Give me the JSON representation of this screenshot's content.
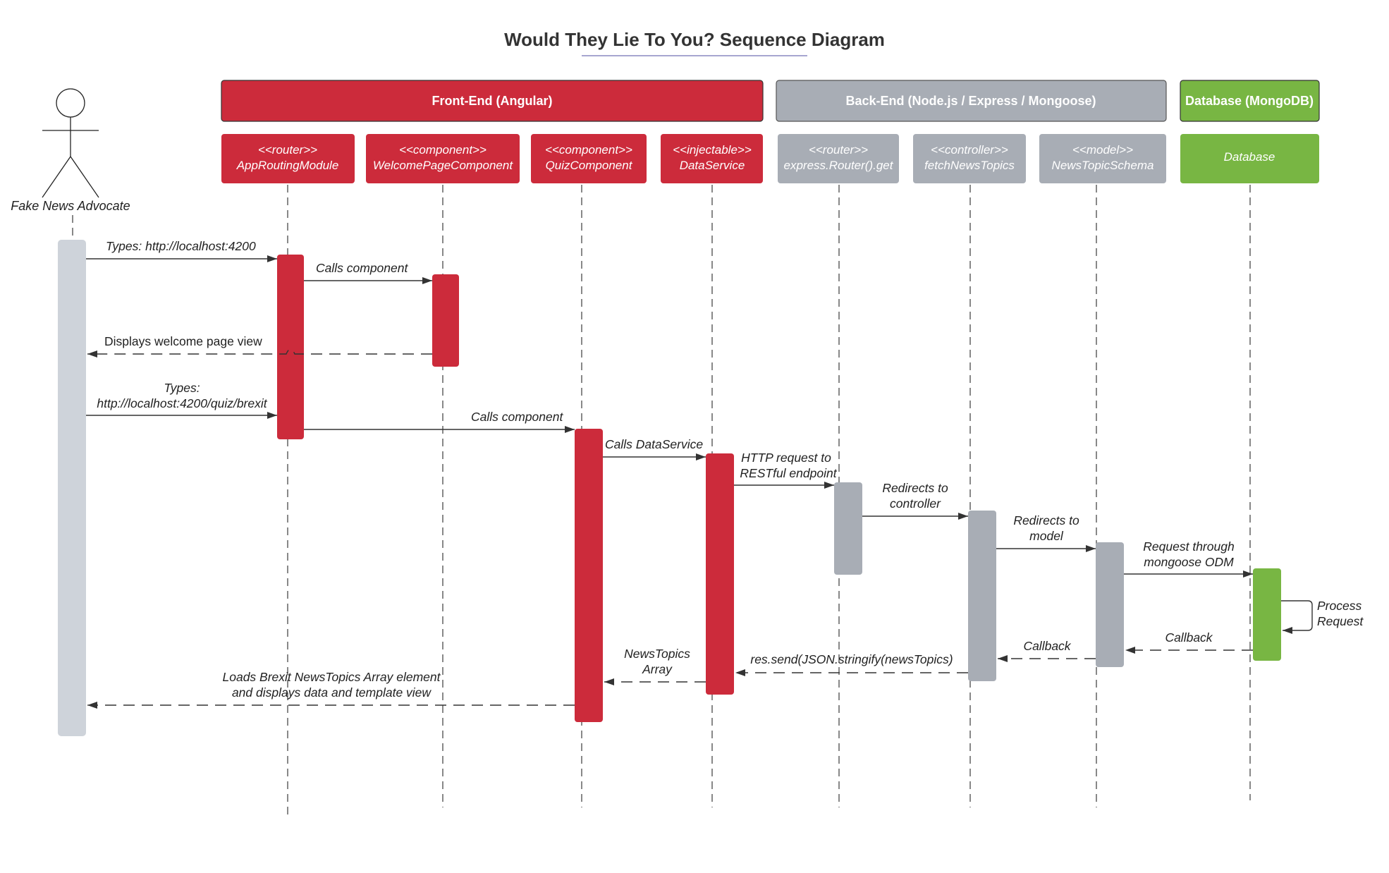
{
  "title": "Would They Lie To You? Sequence Diagram",
  "colors": {
    "frontend": "#cc2b3b",
    "backend": "#a8adb5",
    "database": "#78b643",
    "actor_bar": "#ced3da",
    "title_underline": "#8a88c0"
  },
  "actor": {
    "label": "Fake News Advocate",
    "icon": "stick-figure-icon"
  },
  "groups": [
    {
      "id": "frontend",
      "label": "Front-End (Angular)"
    },
    {
      "id": "backend",
      "label": "Back-End (Node.js / Express / Mongoose)"
    },
    {
      "id": "database",
      "label": "Database (MongoDB)"
    }
  ],
  "participants": [
    {
      "id": "router",
      "stereotype": "<<router>>",
      "name": "AppRoutingModule",
      "group": "frontend"
    },
    {
      "id": "welcome",
      "stereotype": "<<component>>",
      "name": "WelcomePageComponent",
      "group": "frontend"
    },
    {
      "id": "quiz",
      "stereotype": "<<component>>",
      "name": "QuizComponent",
      "group": "frontend"
    },
    {
      "id": "dataservice",
      "stereotype": "<<injectable>>",
      "name": "DataService",
      "group": "frontend"
    },
    {
      "id": "expressrouter",
      "stereotype": "<<router>>",
      "name": "express.Router().get",
      "group": "backend"
    },
    {
      "id": "controller",
      "stereotype": "<<controller>>",
      "name": "fetchNewsTopics",
      "group": "backend"
    },
    {
      "id": "model",
      "stereotype": "<<model>>",
      "name": "NewsTopicSchema",
      "group": "backend"
    },
    {
      "id": "database",
      "stereotype": "",
      "name": "Database",
      "group": "database"
    }
  ],
  "messages": [
    {
      "from": "actor",
      "to": "router",
      "label": [
        "Types: http://localhost:4200"
      ],
      "type": "sync"
    },
    {
      "from": "router",
      "to": "welcome",
      "label": [
        "Calls component"
      ],
      "type": "sync"
    },
    {
      "from": "welcome",
      "to": "actor",
      "label": [
        "Displays welcome page view"
      ],
      "type": "return"
    },
    {
      "from": "actor",
      "to": "router",
      "label": [
        "Types:",
        "http://localhost:4200/quiz/brexit"
      ],
      "type": "sync"
    },
    {
      "from": "router",
      "to": "quiz",
      "label": [
        "Calls component"
      ],
      "type": "sync"
    },
    {
      "from": "quiz",
      "to": "dataservice",
      "label": [
        "Calls DataService"
      ],
      "type": "sync"
    },
    {
      "from": "dataservice",
      "to": "expressrouter",
      "label": [
        "HTTP request to",
        "RESTful endpoint"
      ],
      "type": "sync"
    },
    {
      "from": "expressrouter",
      "to": "controller",
      "label": [
        "Redirects to",
        "controller"
      ],
      "type": "sync"
    },
    {
      "from": "controller",
      "to": "model",
      "label": [
        "Redirects to",
        "model"
      ],
      "type": "sync"
    },
    {
      "from": "model",
      "to": "database",
      "label": [
        "Request through",
        "mongoose ODM"
      ],
      "type": "sync"
    },
    {
      "from": "database",
      "to": "database",
      "label": [
        "Process",
        "Request"
      ],
      "type": "self"
    },
    {
      "from": "database",
      "to": "model",
      "label": [
        "Callback"
      ],
      "type": "return"
    },
    {
      "from": "model",
      "to": "controller",
      "label": [
        "Callback"
      ],
      "type": "return"
    },
    {
      "from": "controller",
      "to": "dataservice",
      "label": [
        "res.send(JSON.stringify(newsTopics)"
      ],
      "type": "return"
    },
    {
      "from": "dataservice",
      "to": "quiz",
      "label": [
        "NewsTopics",
        "Array"
      ],
      "type": "return"
    },
    {
      "from": "quiz",
      "to": "actor",
      "label": [
        "Loads Brexit NewsTopics Array element",
        "and displays data and template view"
      ],
      "type": "return"
    }
  ]
}
